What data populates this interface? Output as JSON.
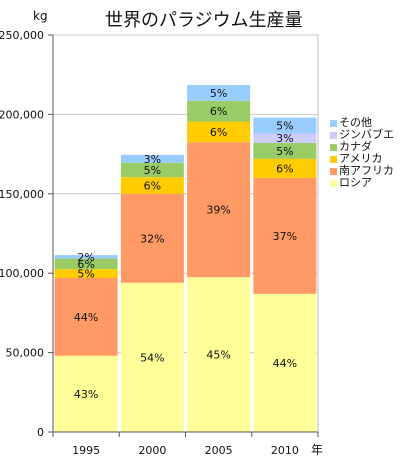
{
  "chart_data": {
    "type": "bar",
    "stacked": true,
    "title": "世界のパラジウム生産量",
    "ylabel": "kg",
    "xlabel": "年",
    "categories": [
      "1995",
      "2000",
      "2005",
      "2010"
    ],
    "ylim": [
      0,
      250000
    ],
    "yticks": [
      "0",
      "50,000",
      "100,000",
      "150,000",
      "200,000",
      "250,000"
    ],
    "grid": true,
    "legend_position": "right",
    "series": [
      {
        "name": "ロシア",
        "color": "#FFFF99",
        "values": [
          48000,
          94000,
          97500,
          87000
        ],
        "labels": [
          "43%",
          "54%",
          "45%",
          "44%"
        ]
      },
      {
        "name": "南アフリカ",
        "color": "#FF9966",
        "values": [
          49000,
          56000,
          85000,
          73000
        ],
        "labels": [
          "44%",
          "32%",
          "39%",
          "37%"
        ]
      },
      {
        "name": "アメリカ",
        "color": "#FFCC00",
        "values": [
          5600,
          10500,
          13000,
          12000
        ],
        "labels": [
          "5%",
          "6%",
          "6%",
          "6%"
        ]
      },
      {
        "name": "カナダ",
        "color": "#99CC66",
        "values": [
          6600,
          9000,
          13000,
          10000
        ],
        "labels": [
          "6%",
          "5%",
          "6%",
          "5%"
        ]
      },
      {
        "name": "ジンバブエ",
        "color": "#CCCCFF",
        "values": [
          0,
          0,
          0,
          6000
        ],
        "labels": [
          "",
          "",
          "",
          "3%"
        ]
      },
      {
        "name": "その他",
        "color": "#99CCFF",
        "values": [
          2200,
          5000,
          10000,
          10000
        ],
        "labels": [
          "2%",
          "3%",
          "5%",
          "5%"
        ]
      }
    ]
  }
}
